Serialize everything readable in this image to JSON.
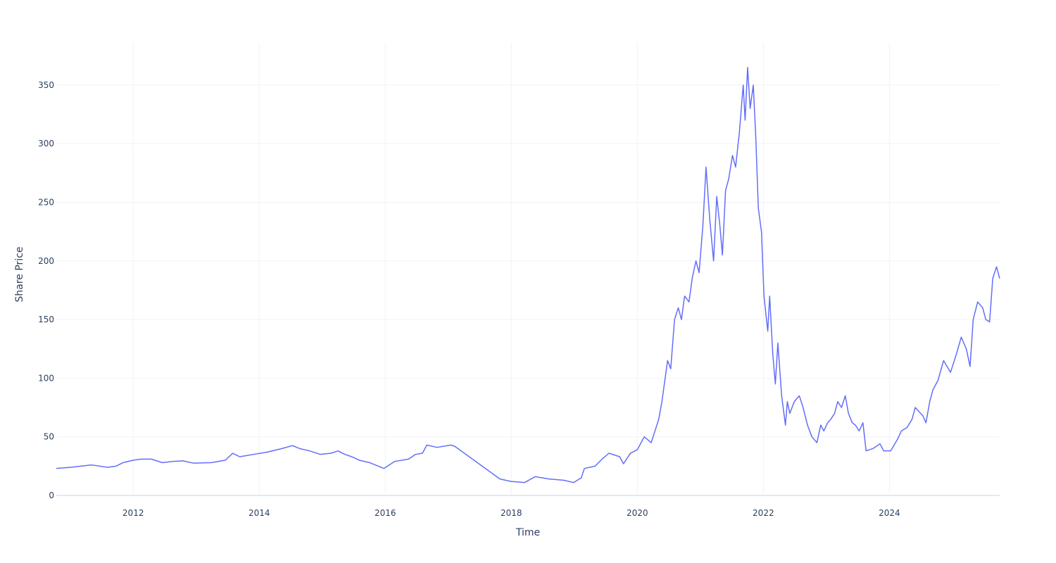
{
  "chart_data": {
    "type": "line",
    "x_label": "Time",
    "y_label": "Share Price",
    "color": "#636efa",
    "grid": true,
    "xlim": [
      2010.78,
      2025.75
    ],
    "xticks": [
      2012,
      2014,
      2016,
      2018,
      2020,
      2022,
      2024
    ],
    "ylim": [
      0,
      386.5
    ],
    "yticks": [
      0,
      50,
      100,
      150,
      200,
      250,
      300,
      350
    ],
    "x": [
      2010.78,
      2011.01,
      2011.34,
      2011.59,
      2011.73,
      2011.84,
      2012.0,
      2012.12,
      2012.29,
      2012.46,
      2012.63,
      2012.79,
      2012.96,
      2013.24,
      2013.46,
      2013.58,
      2013.69,
      2013.91,
      2014.13,
      2014.36,
      2014.53,
      2014.64,
      2014.8,
      2014.97,
      2015.14,
      2015.25,
      2015.36,
      2015.47,
      2015.59,
      2015.75,
      2015.98,
      2016.15,
      2016.37,
      2016.48,
      2016.59,
      2016.66,
      2016.82,
      2017.04,
      2017.1,
      2017.82,
      2017.99,
      2018.21,
      2018.38,
      2018.6,
      2018.83,
      2018.99,
      2019.11,
      2019.16,
      2019.33,
      2019.44,
      2019.55,
      2019.72,
      2019.78,
      2019.89,
      2020.0,
      2020.11,
      2020.22,
      2020.34,
      2020.39,
      2020.48,
      2020.53,
      2020.59,
      2020.65,
      2020.7,
      2020.75,
      2020.82,
      2020.87,
      2020.93,
      2020.98,
      2021.04,
      2021.09,
      2021.15,
      2021.21,
      2021.26,
      2021.31,
      2021.35,
      2021.4,
      2021.45,
      2021.51,
      2021.56,
      2021.62,
      2021.68,
      2021.71,
      2021.75,
      2021.79,
      2021.84,
      2021.88,
      2021.92,
      2021.97,
      2022.01,
      2022.07,
      2022.1,
      2022.15,
      2022.19,
      2022.23,
      2022.29,
      2022.35,
      2022.38,
      2022.42,
      2022.49,
      2022.57,
      2022.63,
      2022.7,
      2022.77,
      2022.85,
      2022.91,
      2022.96,
      2023.02,
      2023.07,
      2023.13,
      2023.18,
      2023.24,
      2023.3,
      2023.35,
      2023.41,
      2023.46,
      2023.52,
      2023.58,
      2023.63,
      2023.74,
      2023.85,
      2023.91,
      2024.02,
      2024.13,
      2024.19,
      2024.28,
      2024.36,
      2024.41,
      2024.53,
      2024.58,
      2024.64,
      2024.69,
      2024.77,
      2024.86,
      2024.97,
      2025.06,
      2025.14,
      2025.22,
      2025.28,
      2025.33,
      2025.4,
      2025.48,
      2025.53,
      2025.59,
      2025.64,
      2025.7,
      2025.75
    ],
    "values": [
      23,
      24,
      26,
      24,
      25,
      28,
      30,
      31,
      31,
      28,
      29,
      29.5,
      27.5,
      28,
      30,
      36,
      33,
      35,
      37,
      40,
      42.5,
      40,
      38,
      35,
      36,
      38,
      35,
      33,
      30,
      28,
      23,
      29,
      31,
      35,
      36,
      43,
      41,
      43,
      42,
      14,
      12,
      11,
      16,
      14,
      13,
      11,
      15,
      23,
      25,
      31,
      36,
      33,
      27,
      36,
      39,
      50,
      45,
      65,
      80,
      115,
      108,
      150,
      160,
      150,
      170,
      165,
      185,
      200,
      190,
      230,
      280,
      235,
      200,
      255,
      230,
      205,
      260,
      270,
      290,
      280,
      310,
      350,
      320,
      365,
      330,
      350,
      305,
      245,
      225,
      170,
      140,
      170,
      120,
      95,
      130,
      85,
      60,
      80,
      70,
      80,
      85,
      75,
      60,
      50,
      45,
      60,
      55,
      62,
      65,
      70,
      80,
      75,
      85,
      70,
      62,
      60,
      55,
      62,
      38,
      40,
      44,
      38,
      38,
      48,
      55,
      58,
      65,
      75,
      68,
      62,
      80,
      90,
      98,
      115,
      105,
      120,
      135,
      125,
      110,
      150,
      165,
      160,
      150,
      148,
      185,
      195,
      185
    ]
  }
}
